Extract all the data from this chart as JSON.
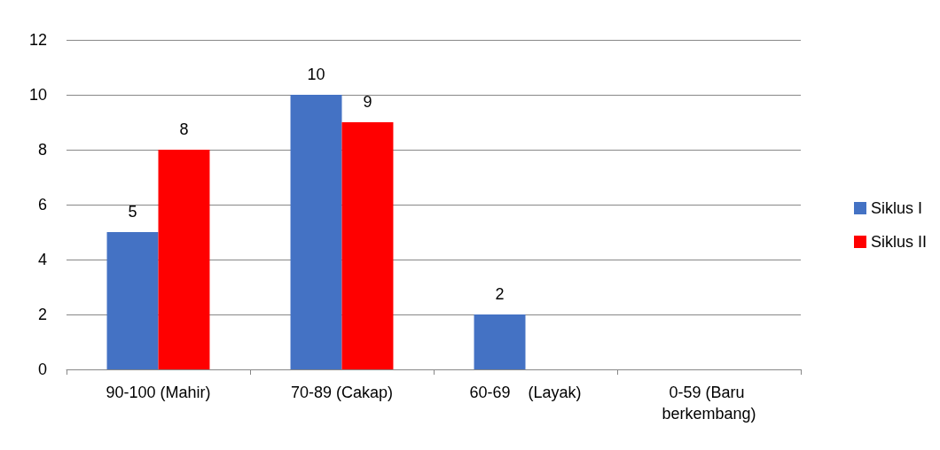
{
  "chart_data": {
    "type": "bar",
    "categories": [
      "90-100 (Mahir)",
      "70-89 (Cakap)",
      "60-69    (Layak)",
      "0-59 (Baru berkembang)"
    ],
    "series": [
      {
        "name": "Siklus I",
        "color": "#4472c4",
        "values": [
          5,
          10,
          2,
          0
        ],
        "value_labels": [
          "5",
          "10",
          "2",
          null
        ]
      },
      {
        "name": "Siklus II",
        "color": "#ff0000",
        "values": [
          8,
          9,
          0,
          0
        ],
        "value_labels": [
          "8",
          "9",
          null,
          null
        ]
      }
    ],
    "ylim": [
      0,
      12
    ],
    "yticks": [
      0,
      2,
      4,
      6,
      8,
      10,
      12
    ],
    "grid": "y",
    "legend": "right"
  }
}
